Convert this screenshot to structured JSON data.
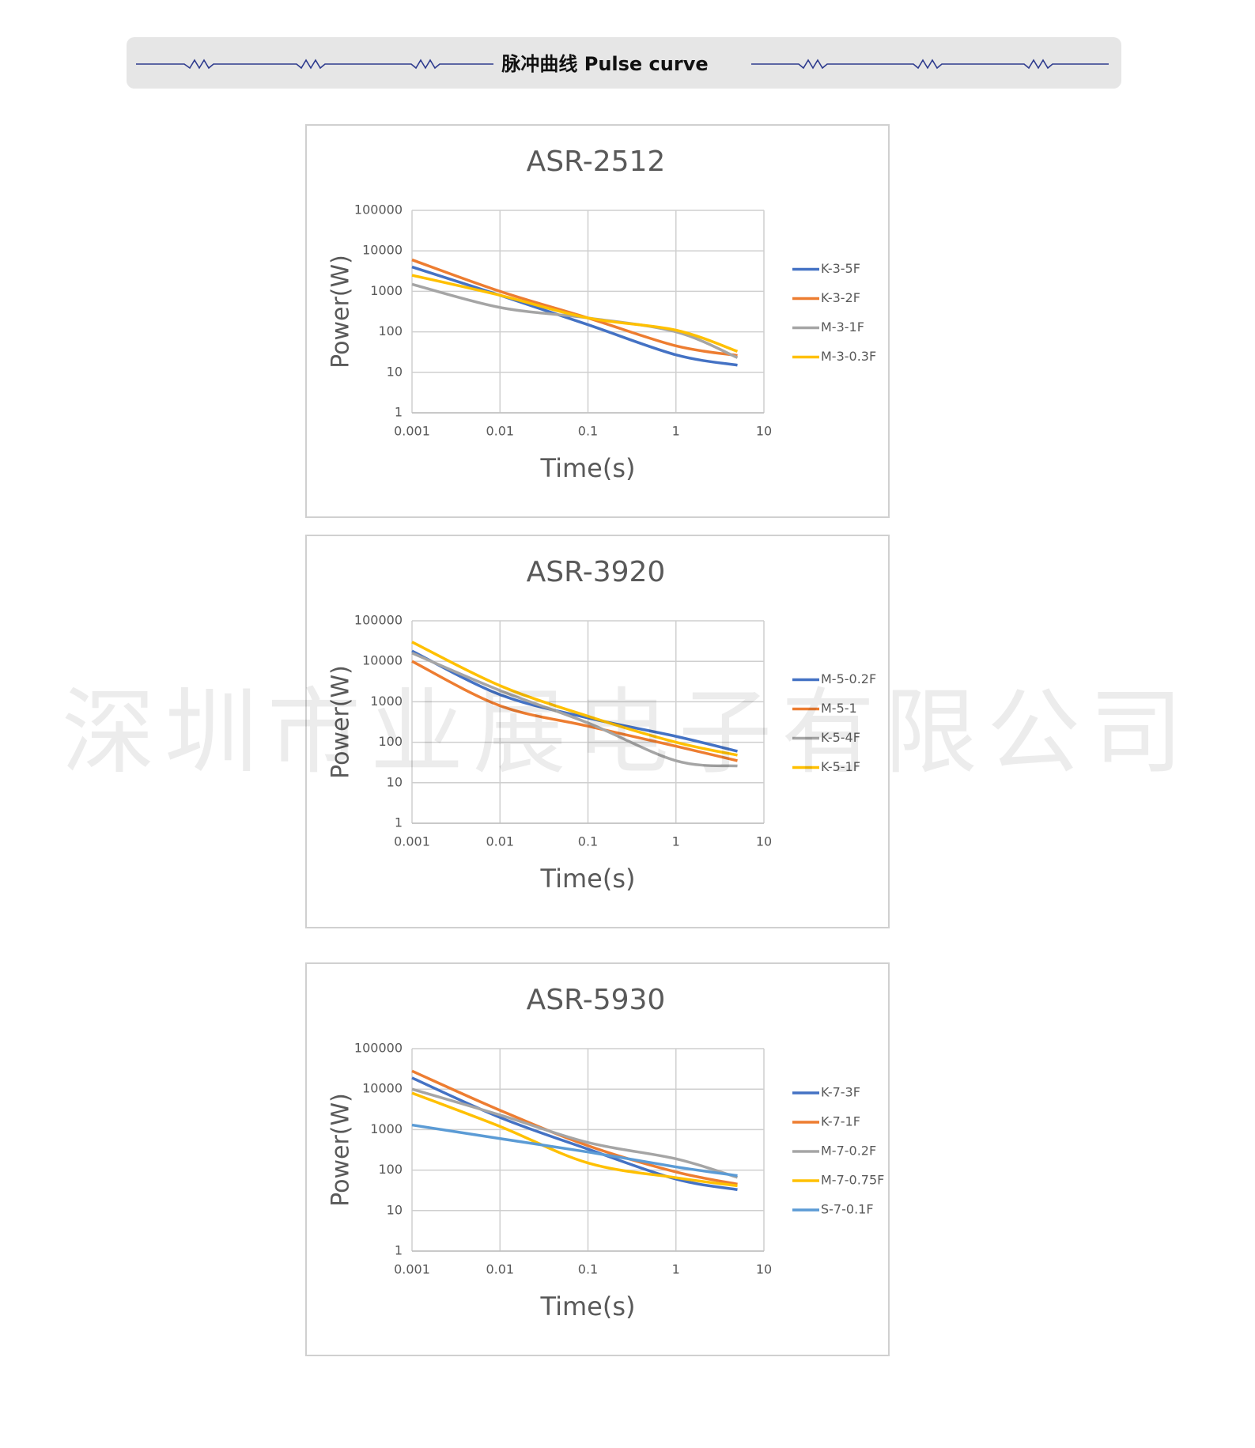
{
  "header": {
    "title": "脉冲曲线  Pulse curve"
  },
  "watermark": "深圳市业展电子有限公司",
  "chart_data": [
    {
      "type": "line",
      "title": "ASR-2512",
      "xlabel": "Time(s)",
      "ylabel": "Power(W)",
      "log_x": true,
      "log_y": true,
      "grid": true,
      "xlim": [
        0.001,
        10
      ],
      "ylim": [
        1,
        100000
      ],
      "xticks": [
        0.001,
        0.01,
        0.1,
        1,
        10
      ],
      "yticks": [
        1,
        10,
        100,
        1000,
        10000,
        100000
      ],
      "x": [
        0.001,
        0.01,
        0.1,
        1,
        5
      ],
      "legend": "right",
      "series": [
        {
          "name": "K-3-5F",
          "color": "#4472c4",
          "values": [
            4000,
            800,
            150,
            27,
            15
          ]
        },
        {
          "name": "K-3-2F",
          "color": "#ed7d31",
          "values": [
            6000,
            1000,
            220,
            45,
            26
          ]
        },
        {
          "name": "M-3-1F",
          "color": "#a5a5a5",
          "values": [
            1500,
            400,
            220,
            100,
            23
          ]
        },
        {
          "name": "M-3-0.3F",
          "color": "#ffc000",
          "values": [
            2500,
            800,
            220,
            110,
            33
          ]
        }
      ]
    },
    {
      "type": "line",
      "title": "ASR-3920",
      "xlabel": "Time(s)",
      "ylabel": "Power(W)",
      "log_x": true,
      "log_y": true,
      "grid": true,
      "xlim": [
        0.001,
        10
      ],
      "ylim": [
        1,
        100000
      ],
      "xticks": [
        0.001,
        0.01,
        0.1,
        1,
        10
      ],
      "yticks": [
        1,
        10,
        100,
        1000,
        10000,
        100000
      ],
      "x": [
        0.001,
        0.01,
        0.1,
        1,
        5
      ],
      "legend": "right",
      "series": [
        {
          "name": "M-5-0.2F",
          "color": "#4472c4",
          "values": [
            18000,
            1500,
            400,
            140,
            60
          ]
        },
        {
          "name": "M-5-1",
          "color": "#ed7d31",
          "values": [
            10000,
            800,
            250,
            80,
            35
          ]
        },
        {
          "name": "K-5-4F",
          "color": "#a5a5a5",
          "values": [
            16000,
            1900,
            300,
            35,
            26
          ]
        },
        {
          "name": "K-5-1F",
          "color": "#ffc000",
          "values": [
            30000,
            2500,
            440,
            100,
            48
          ]
        }
      ]
    },
    {
      "type": "line",
      "title": "ASR-5930",
      "xlabel": "Time(s)",
      "ylabel": "Power(W)",
      "log_x": true,
      "log_y": true,
      "grid": true,
      "xlim": [
        0.001,
        10
      ],
      "ylim": [
        1,
        100000
      ],
      "xticks": [
        0.001,
        0.01,
        0.1,
        1,
        10
      ],
      "yticks": [
        1,
        10,
        100,
        1000,
        10000,
        100000
      ],
      "x": [
        0.001,
        0.01,
        0.1,
        1,
        5
      ],
      "legend": "right",
      "series": [
        {
          "name": "K-7-3F",
          "color": "#4472c4",
          "values": [
            19000,
            2000,
            330,
            60,
            33
          ]
        },
        {
          "name": "K-7-1F",
          "color": "#ed7d31",
          "values": [
            28000,
            3000,
            400,
            90,
            45
          ]
        },
        {
          "name": "M-7-0.2F",
          "color": "#a5a5a5",
          "values": [
            10000,
            2300,
            480,
            190,
            66
          ]
        },
        {
          "name": "M-7-0.75F",
          "color": "#ffc000",
          "values": [
            8000,
            1200,
            150,
            65,
            41
          ]
        },
        {
          "name": "S-7-0.1F",
          "color": "#5b9bd5",
          "values": [
            1300,
            600,
            280,
            120,
            73
          ]
        }
      ]
    }
  ]
}
